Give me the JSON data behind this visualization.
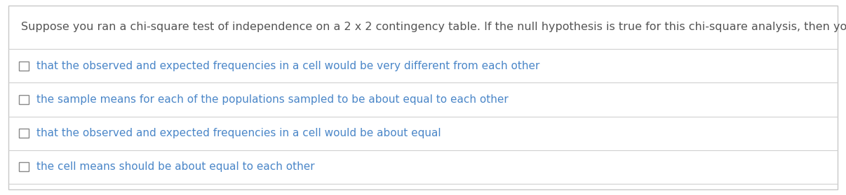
{
  "bg_color": "#ffffff",
  "border_color": "#c8c8c8",
  "question_text": "Suppose you ran a chi-square test of independence on a 2 x 2 contingency table. If the null hypothesis is true for this chi-square analysis, then you would expect:",
  "question_color": "#555555",
  "options": [
    "that the observed and expected frequencies in a cell would be very different from each other",
    "the sample means for each of the populations sampled to be about equal to each other",
    "that the observed and expected frequencies in a cell would be about equal",
    "the cell means should be about equal to each other"
  ],
  "option_color": "#4a86c8",
  "separator_color": "#d0d0d0",
  "checkbox_edge_color": "#888888",
  "question_fontsize": 11.5,
  "option_fontsize": 11.0,
  "figure_width": 12.06,
  "figure_height": 2.79,
  "dpi": 100
}
